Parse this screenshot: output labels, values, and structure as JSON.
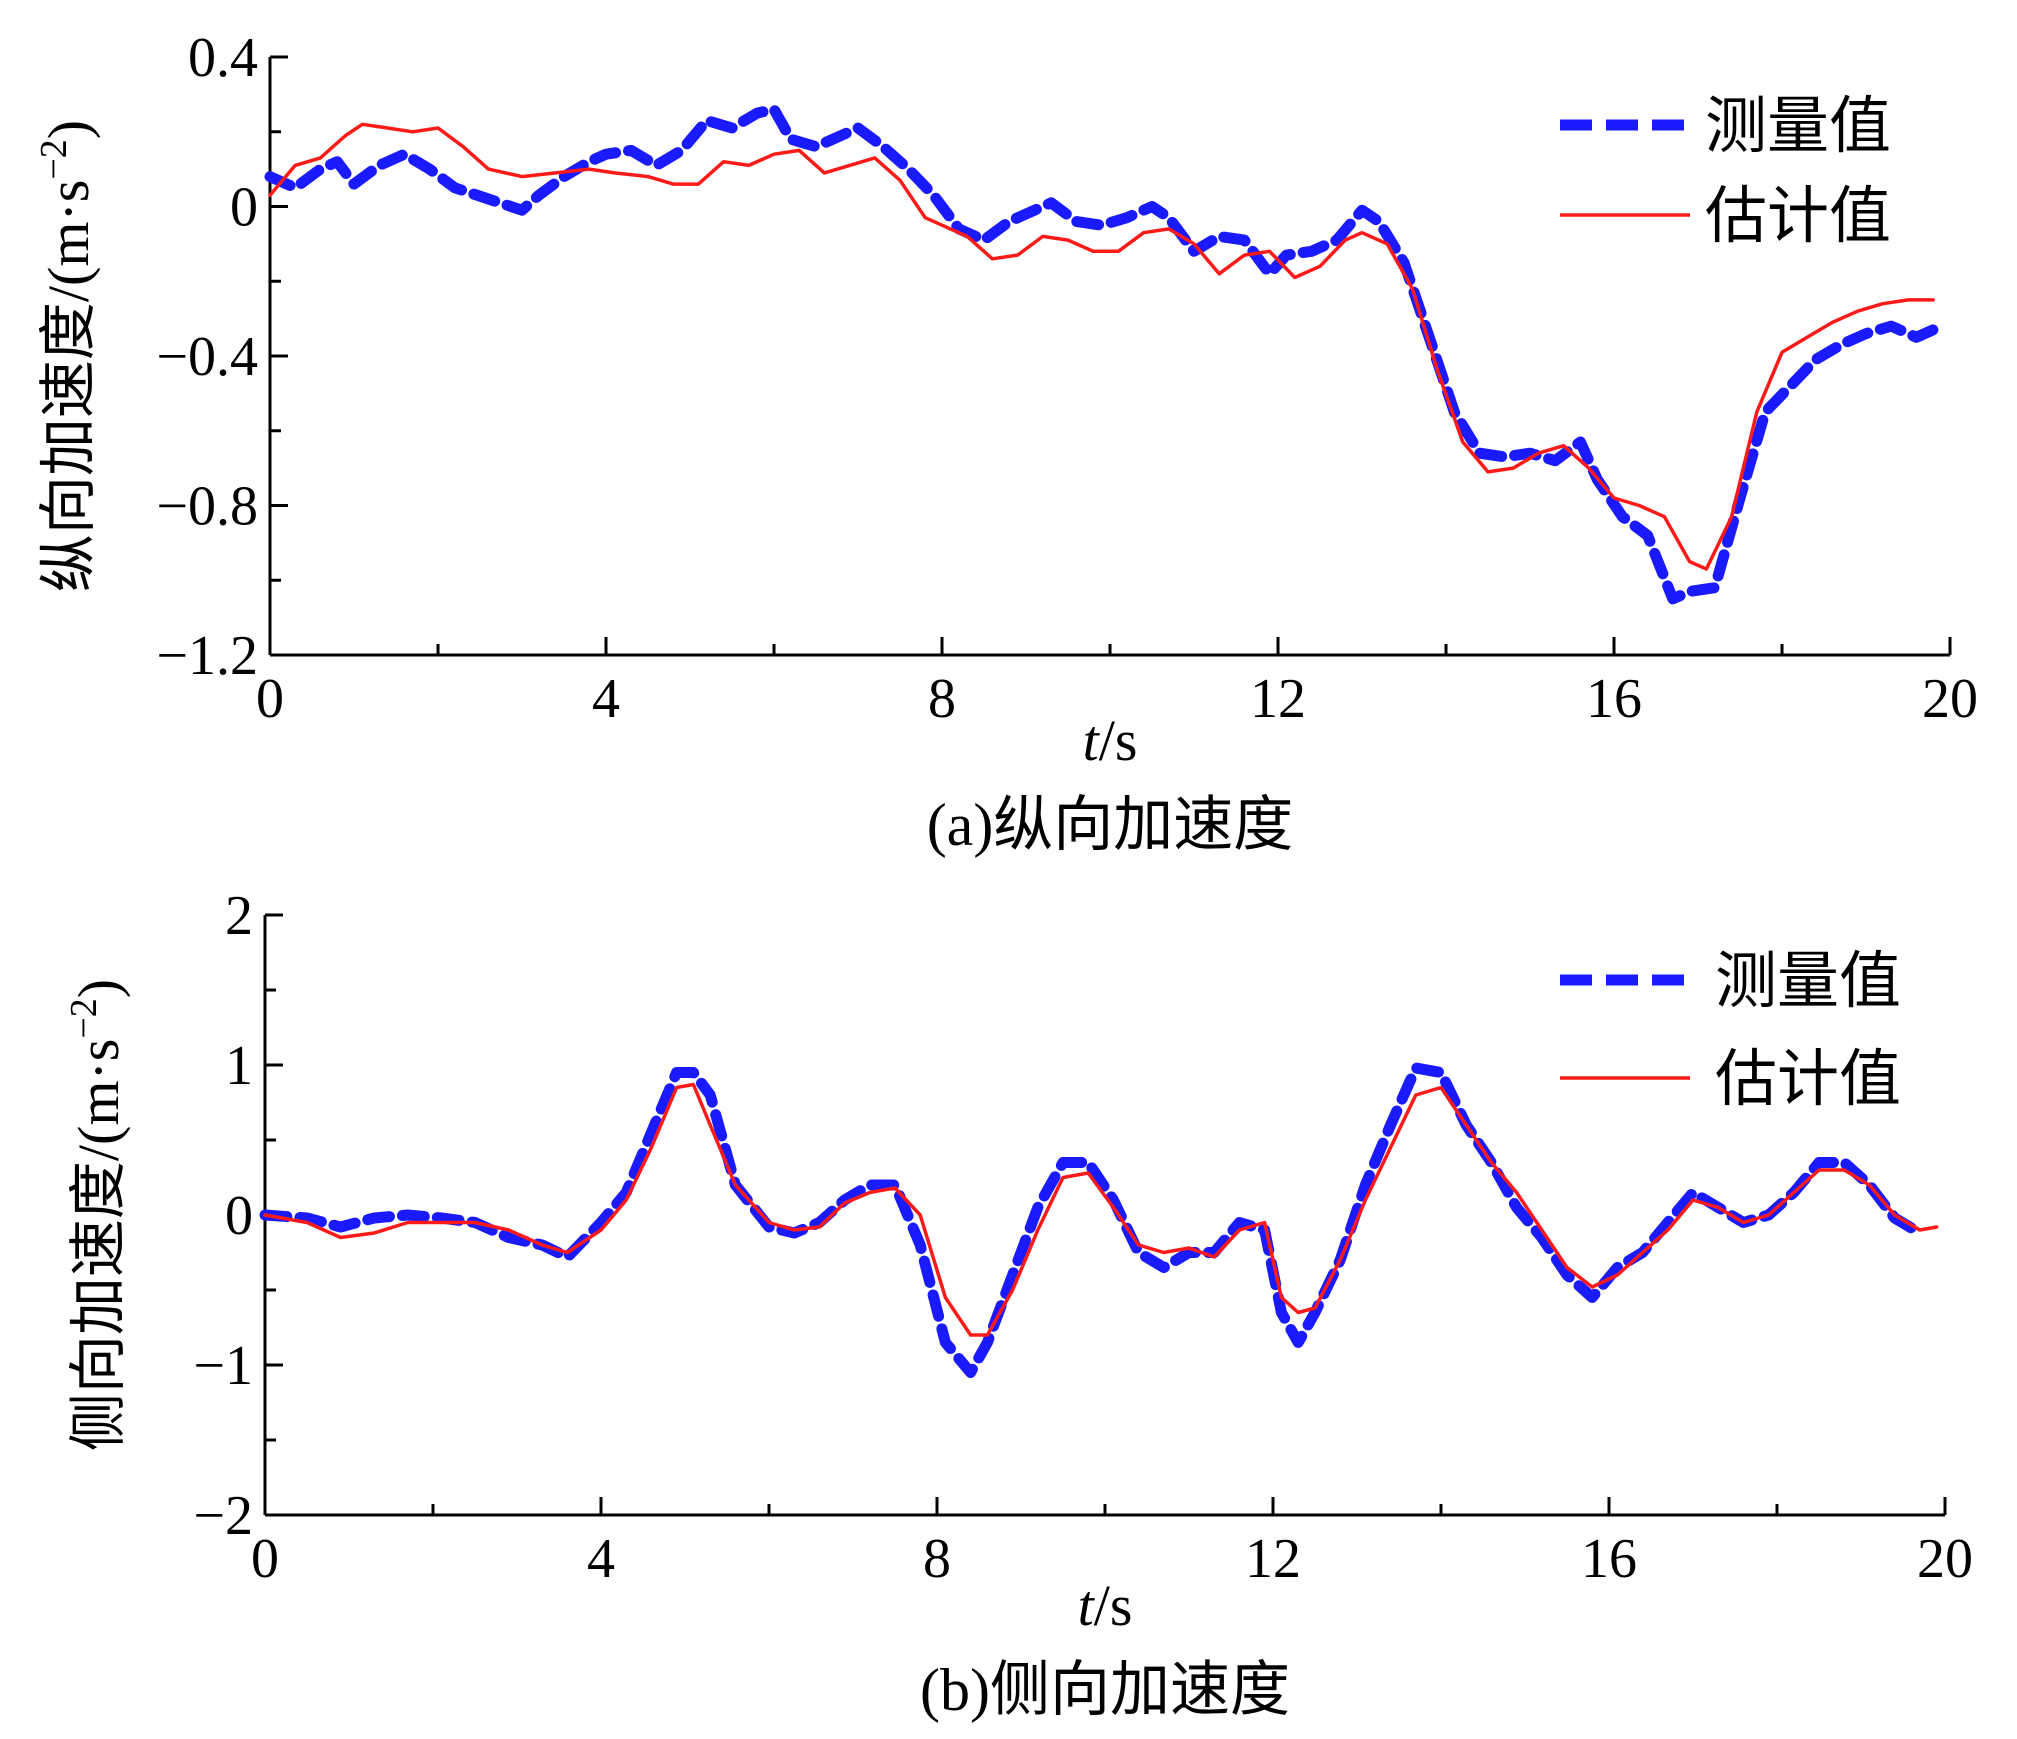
{
  "chart_data": [
    {
      "type": "line",
      "caption": "(a)纵向加速度",
      "xlabel_italic": "t",
      "xlabel_unit": "/s",
      "ylabel": "纵向加速度/(m·s",
      "ylabel_exp": "−2",
      "ylabel_close": ")",
      "xlim": [
        0,
        20
      ],
      "ylim": [
        -1.2,
        0.4
      ],
      "xticks": [
        0,
        4,
        8,
        12,
        16,
        20
      ],
      "xtick_labels": [
        "0",
        "4",
        "8",
        "12",
        "16",
        "20"
      ],
      "yticks": [
        0.4,
        0,
        -0.4,
        -0.8,
        -1.2
      ],
      "ytick_labels": [
        "0.4",
        "0",
        "−0.4",
        "−0.8",
        "−1.2"
      ],
      "legend_position": "top-right",
      "grid": false,
      "series": [
        {
          "name": "测量值",
          "color": "#1a1aff",
          "style": "dashed",
          "x": [
            0,
            0.3,
            0.6,
            0.8,
            1.0,
            1.3,
            1.6,
            1.9,
            2.2,
            2.6,
            3.0,
            3.2,
            3.5,
            3.8,
            4.0,
            4.3,
            4.6,
            4.9,
            5.2,
            5.5,
            5.8,
            6.0,
            6.2,
            6.5,
            6.8,
            7.0,
            7.3,
            7.6,
            7.9,
            8.2,
            8.5,
            8.8,
            9.0,
            9.3,
            9.6,
            9.9,
            10.2,
            10.5,
            10.7,
            11.0,
            11.3,
            11.6,
            11.9,
            12.1,
            12.4,
            12.7,
            13.0,
            13.2,
            13.5,
            13.8,
            14.1,
            14.4,
            14.7,
            15.0,
            15.3,
            15.6,
            15.8,
            16.1,
            16.4,
            16.7,
            16.9,
            17.2,
            17.5,
            17.8,
            18.1,
            18.4,
            18.7,
            19.0,
            19.3,
            19.6,
            19.8
          ],
          "y": [
            0.08,
            0.05,
            0.1,
            0.12,
            0.06,
            0.11,
            0.14,
            0.1,
            0.05,
            0.02,
            -0.01,
            0.03,
            0.08,
            0.12,
            0.14,
            0.15,
            0.11,
            0.15,
            0.23,
            0.21,
            0.25,
            0.26,
            0.18,
            0.16,
            0.19,
            0.21,
            0.16,
            0.1,
            0.03,
            -0.06,
            -0.09,
            -0.04,
            -0.02,
            0.01,
            -0.04,
            -0.05,
            -0.03,
            0.0,
            -0.03,
            -0.12,
            -0.08,
            -0.09,
            -0.18,
            -0.13,
            -0.12,
            -0.09,
            -0.01,
            -0.04,
            -0.15,
            -0.35,
            -0.55,
            -0.66,
            -0.67,
            -0.66,
            -0.68,
            -0.63,
            -0.73,
            -0.83,
            -0.88,
            -1.05,
            -1.03,
            -1.02,
            -0.78,
            -0.55,
            -0.48,
            -0.41,
            -0.37,
            -0.34,
            -0.32,
            -0.35,
            -0.33
          ]
        },
        {
          "name": "估计值",
          "color": "#ff1a1a",
          "style": "solid",
          "x": [
            0,
            0.3,
            0.6,
            0.9,
            1.1,
            1.4,
            1.7,
            2.0,
            2.3,
            2.6,
            3.0,
            3.4,
            3.8,
            4.1,
            4.5,
            4.8,
            5.1,
            5.4,
            5.7,
            6.0,
            6.3,
            6.6,
            6.9,
            7.2,
            7.5,
            7.8,
            8.0,
            8.3,
            8.6,
            8.9,
            9.2,
            9.5,
            9.8,
            10.1,
            10.4,
            10.7,
            11.0,
            11.3,
            11.6,
            11.9,
            12.2,
            12.5,
            12.8,
            13.0,
            13.3,
            13.6,
            13.9,
            14.2,
            14.5,
            14.8,
            15.1,
            15.4,
            15.7,
            16.0,
            16.3,
            16.6,
            16.9,
            17.1,
            17.4,
            17.7,
            18.0,
            18.3,
            18.6,
            18.9,
            19.2,
            19.5,
            19.8
          ],
          "y": [
            0.03,
            0.11,
            0.13,
            0.19,
            0.22,
            0.21,
            0.2,
            0.21,
            0.16,
            0.1,
            0.08,
            0.09,
            0.1,
            0.09,
            0.08,
            0.06,
            0.06,
            0.12,
            0.11,
            0.14,
            0.15,
            0.09,
            0.11,
            0.13,
            0.07,
            -0.03,
            -0.05,
            -0.08,
            -0.14,
            -0.13,
            -0.08,
            -0.09,
            -0.12,
            -0.12,
            -0.07,
            -0.06,
            -0.1,
            -0.18,
            -0.13,
            -0.12,
            -0.19,
            -0.16,
            -0.09,
            -0.07,
            -0.1,
            -0.22,
            -0.44,
            -0.63,
            -0.71,
            -0.7,
            -0.66,
            -0.64,
            -0.7,
            -0.78,
            -0.8,
            -0.83,
            -0.95,
            -0.97,
            -0.83,
            -0.55,
            -0.39,
            -0.35,
            -0.31,
            -0.28,
            -0.26,
            -0.25,
            -0.25
          ]
        }
      ]
    },
    {
      "type": "line",
      "caption": "(b)侧向加速度",
      "xlabel_italic": "t",
      "xlabel_unit": "/s",
      "ylabel": "侧向加速度/(m·s",
      "ylabel_exp": "−2",
      "ylabel_close": ")",
      "xlim": [
        0,
        20
      ],
      "ylim": [
        -2,
        2
      ],
      "xticks": [
        0,
        4,
        8,
        12,
        16,
        20
      ],
      "xtick_labels": [
        "0",
        "4",
        "8",
        "12",
        "16",
        "20"
      ],
      "yticks": [
        2,
        1,
        0,
        -1,
        -2
      ],
      "ytick_labels": [
        "2",
        "1",
        "0",
        "−1",
        "−2"
      ],
      "legend_position": "top-right",
      "grid": false,
      "series": [
        {
          "name": "测量值",
          "color": "#1a1aff",
          "style": "dashed",
          "x": [
            0,
            0.5,
            0.9,
            1.3,
            1.7,
            2.1,
            2.5,
            2.9,
            3.3,
            3.6,
            4.0,
            4.3,
            4.6,
            4.9,
            5.1,
            5.3,
            5.6,
            6.0,
            6.3,
            6.6,
            6.9,
            7.2,
            7.5,
            7.8,
            8.1,
            8.4,
            8.6,
            8.9,
            9.2,
            9.5,
            9.8,
            10.1,
            10.4,
            10.7,
            11.0,
            11.3,
            11.6,
            11.9,
            12.1,
            12.3,
            12.5,
            12.8,
            13.1,
            13.4,
            13.7,
            14.0,
            14.3,
            14.6,
            14.9,
            15.2,
            15.5,
            15.8,
            16.1,
            16.4,
            16.7,
            17.0,
            17.3,
            17.6,
            17.9,
            18.2,
            18.5,
            18.8,
            19.1,
            19.4,
            19.7
          ],
          "y": [
            0.0,
            -0.02,
            -0.08,
            -0.02,
            0.0,
            -0.02,
            -0.05,
            -0.15,
            -0.2,
            -0.28,
            -0.05,
            0.15,
            0.55,
            0.95,
            0.95,
            0.8,
            0.2,
            -0.08,
            -0.12,
            -0.05,
            0.1,
            0.2,
            0.2,
            -0.2,
            -0.85,
            -1.05,
            -0.85,
            -0.4,
            0.05,
            0.35,
            0.35,
            0.1,
            -0.25,
            -0.35,
            -0.25,
            -0.25,
            -0.05,
            -0.1,
            -0.65,
            -0.85,
            -0.65,
            -0.3,
            0.2,
            0.6,
            0.98,
            0.95,
            0.6,
            0.35,
            0.05,
            -0.15,
            -0.4,
            -0.55,
            -0.35,
            -0.25,
            -0.05,
            0.15,
            0.05,
            -0.05,
            0.0,
            0.15,
            0.35,
            0.35,
            0.2,
            -0.02,
            -0.12
          ]
        },
        {
          "name": "估计值",
          "color": "#ff1a1a",
          "style": "solid",
          "x": [
            0,
            0.5,
            0.9,
            1.3,
            1.7,
            2.1,
            2.5,
            2.9,
            3.3,
            3.6,
            4.0,
            4.3,
            4.6,
            4.9,
            5.1,
            5.3,
            5.6,
            6.0,
            6.3,
            6.6,
            6.9,
            7.2,
            7.5,
            7.8,
            8.1,
            8.4,
            8.6,
            8.9,
            9.2,
            9.5,
            9.8,
            10.1,
            10.4,
            10.7,
            11.0,
            11.3,
            11.6,
            11.9,
            12.1,
            12.3,
            12.5,
            12.8,
            13.1,
            13.4,
            13.7,
            14.0,
            14.3,
            14.6,
            14.9,
            15.2,
            15.5,
            15.8,
            16.1,
            16.4,
            16.7,
            17.0,
            17.3,
            17.6,
            17.9,
            18.2,
            18.5,
            18.8,
            19.1,
            19.4,
            19.7,
            19.9
          ],
          "y": [
            0.0,
            -0.05,
            -0.15,
            -0.12,
            -0.05,
            -0.05,
            -0.05,
            -0.1,
            -0.2,
            -0.25,
            -0.1,
            0.1,
            0.45,
            0.85,
            0.87,
            0.6,
            0.2,
            -0.05,
            -0.1,
            -0.08,
            0.08,
            0.15,
            0.18,
            0.0,
            -0.55,
            -0.8,
            -0.8,
            -0.5,
            -0.1,
            0.25,
            0.28,
            0.05,
            -0.2,
            -0.25,
            -0.22,
            -0.28,
            -0.1,
            -0.05,
            -0.55,
            -0.65,
            -0.62,
            -0.3,
            0.1,
            0.45,
            0.8,
            0.85,
            0.6,
            0.35,
            0.15,
            -0.1,
            -0.35,
            -0.48,
            -0.4,
            -0.25,
            -0.1,
            0.1,
            0.05,
            -0.05,
            0.0,
            0.15,
            0.3,
            0.3,
            0.2,
            0.0,
            -0.1,
            -0.08
          ]
        }
      ]
    }
  ]
}
